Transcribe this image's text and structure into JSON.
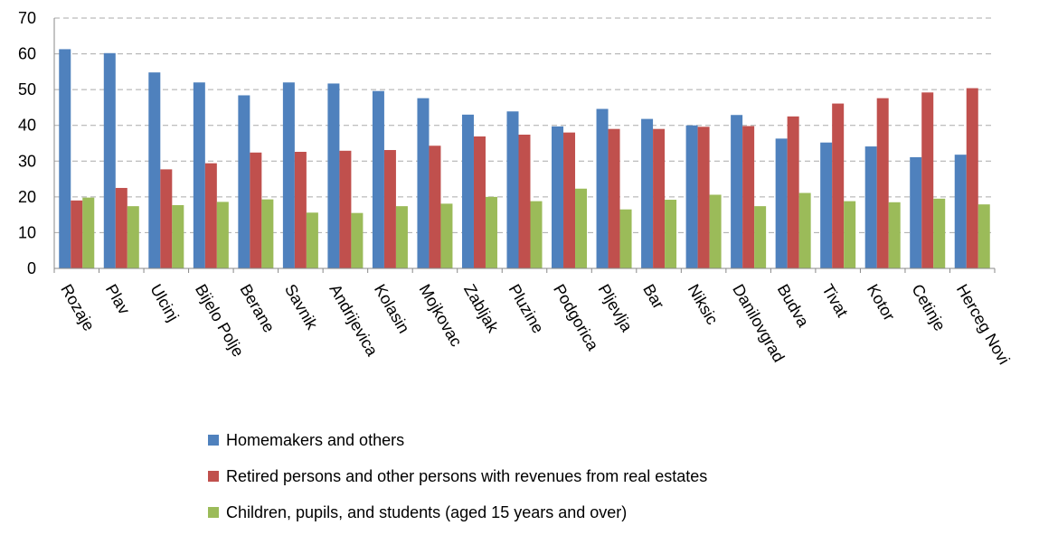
{
  "chart_data": {
    "type": "bar",
    "categories": [
      "Rozaje",
      "Plav",
      "Ulcinj",
      "Bijelo Polje",
      "Berane",
      "Savnik",
      "Andrijevica",
      "Kolasin",
      "Mojkovac",
      "Zabljak",
      "Pluzine",
      "Podgorica",
      "Pljevlja",
      "Bar",
      "Niksic",
      "Danilovgrad",
      "Budva",
      "Tivat",
      "Kotor",
      "Cetinje",
      "Herceg Novi"
    ],
    "series": [
      {
        "name": "Homemakers and others",
        "color": "#4f81bd",
        "values": [
          61.3,
          60.2,
          54.8,
          52,
          48.4,
          52,
          51.7,
          49.6,
          47.6,
          43,
          43.9,
          39.7,
          44.6,
          41.8,
          40,
          42.9,
          36.3,
          35.2,
          34.1,
          31.1,
          31.8
        ]
      },
      {
        "name": "Retired persons and other persons with revenues from real estates",
        "color": "#c0504d",
        "values": [
          19,
          22.5,
          27.7,
          29.4,
          32.4,
          32.6,
          32.9,
          33.1,
          34.3,
          36.9,
          37.4,
          38,
          39,
          39,
          39.6,
          39.8,
          42.5,
          46.1,
          47.6,
          49.2,
          50.4
        ]
      },
      {
        "name": "Children, pupils, and students (aged 15 years and over)",
        "color": "#9bbb59",
        "values": [
          19.8,
          17.4,
          17.7,
          18.6,
          19.3,
          15.6,
          15.5,
          17.4,
          18.1,
          20,
          18.8,
          22.3,
          16.5,
          19.2,
          20.6,
          17.4,
          21.1,
          18.8,
          18.5,
          19.5,
          17.9
        ]
      }
    ],
    "ylim": [
      0,
      70
    ],
    "yticks": [
      0,
      10,
      20,
      30,
      40,
      50,
      60,
      70
    ],
    "grid": true
  }
}
